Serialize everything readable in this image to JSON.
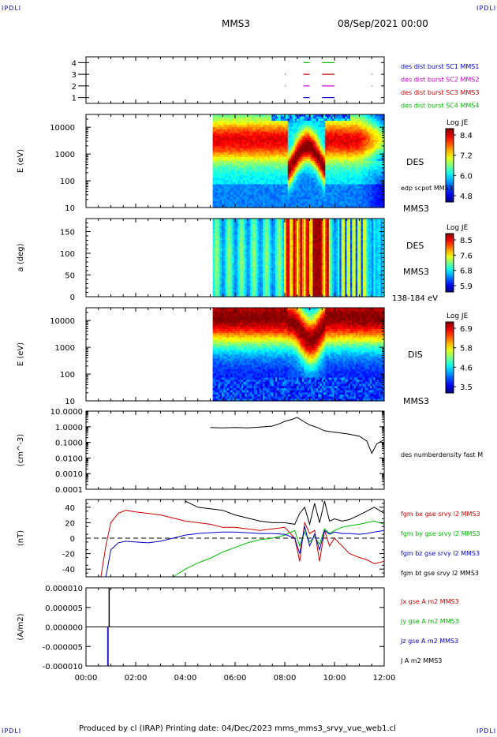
{
  "corners": {
    "top_left": "IPDLI",
    "top_right": "IPDLI",
    "bottom_left": "IPDLI",
    "bottom_right": "IPDLI"
  },
  "header": {
    "title": "MMS3",
    "date": "08/Sep/2021 00:00"
  },
  "footer": {
    "text": "Produced by cl (IRAP)   Printing date: 04/Dec/2023   mms_mms3_srvy_vue_web1.cl"
  },
  "colors": {
    "mms1": "#0000cc",
    "mms2": "#cc00cc",
    "mms3": "#cc0000",
    "mms4": "#00bb00",
    "black": "#000000"
  },
  "chart_data": [
    {
      "type": "scatter",
      "panel": "burst",
      "yticks": [
        "1",
        "2",
        "3",
        "4"
      ],
      "ylim": [
        0.5,
        4.5
      ],
      "legend": [
        {
          "label": "des dist burst SC1 MMS1",
          "color": "#0000cc"
        },
        {
          "label": "des dist burst SC2 MMS2",
          "color": "#cc00cc"
        },
        {
          "label": "des dist burst SC3 MMS3",
          "color": "#cc0000"
        },
        {
          "label": "des dist burst SC4 MMS4",
          "color": "#00bb00"
        }
      ],
      "series": [
        {
          "sc": 1,
          "segments": [
            [
              8.75,
              9.0
            ],
            [
              9.5,
              10.0
            ]
          ]
        },
        {
          "sc": 2,
          "segments": [
            [
              8.0,
              8.02
            ],
            [
              8.75,
              9.0
            ],
            [
              9.5,
              10.0
            ],
            [
              11.5,
              11.52
            ]
          ]
        },
        {
          "sc": 3,
          "segments": [
            [
              8.0,
              8.02
            ],
            [
              8.75,
              9.0
            ],
            [
              9.5,
              10.0
            ],
            [
              11.5,
              11.52
            ]
          ]
        },
        {
          "sc": 4,
          "segments": [
            [
              8.75,
              9.0
            ],
            [
              9.5,
              10.0
            ]
          ]
        }
      ]
    },
    {
      "type": "heatmap",
      "panel": "des_energy",
      "ylabel": "E (eV)",
      "yscale": "log",
      "yticks": [
        "10",
        "100",
        "1000",
        "10000"
      ],
      "ylim": [
        10,
        30000
      ],
      "colorbar": {
        "title": "Log JE",
        "ticks": [
          "8.4",
          "7.2",
          "6.0",
          "4.8"
        ],
        "range": [
          4.8,
          8.4
        ]
      },
      "labels": [
        "DES",
        "edp scpot MMS3",
        "MMS3"
      ]
    },
    {
      "type": "heatmap",
      "panel": "des_pitch",
      "ylabel": "a (deg)",
      "yticks": [
        "0",
        "50",
        "100",
        "150"
      ],
      "ylim": [
        0,
        180
      ],
      "colorbar": {
        "title": "Log JE",
        "ticks": [
          "8.5",
          "7.6",
          "6.8",
          "5.9"
        ],
        "range": [
          5.9,
          8.5
        ]
      },
      "labels": [
        "DES",
        "MMS3",
        "138-184 eV"
      ]
    },
    {
      "type": "heatmap",
      "panel": "dis_energy",
      "ylabel": "E (eV)",
      "yscale": "log",
      "yticks": [
        "10",
        "100",
        "1000",
        "10000"
      ],
      "ylim": [
        10,
        30000
      ],
      "colorbar": {
        "title": "Log JE",
        "ticks": [
          "6.9",
          "5.8",
          "4.6",
          "3.5"
        ],
        "range": [
          3.5,
          6.9
        ]
      },
      "labels": [
        "DIS",
        "MMS3"
      ]
    },
    {
      "type": "line",
      "panel": "density",
      "ylabel": "(cm^-3)",
      "yscale": "log",
      "yticks": [
        "10.0000",
        "1.0000",
        "0.1000",
        "0.0100",
        "0.0010",
        "0.0001"
      ],
      "ylim": [
        0.0001,
        10
      ],
      "legend": [
        {
          "label": "des numberdensity fast M",
          "color": "#000000"
        }
      ],
      "x": [
        5.0,
        5.5,
        6.0,
        6.5,
        7.0,
        7.5,
        7.8,
        8.0,
        8.3,
        8.5,
        8.75,
        9.0,
        9.3,
        9.6,
        10.0,
        10.5,
        11.0,
        11.3,
        11.5,
        11.7,
        12.0
      ],
      "values": [
        0.9,
        0.85,
        0.9,
        0.85,
        0.95,
        1.1,
        1.6,
        2.2,
        3.0,
        4.0,
        2.2,
        1.3,
        0.9,
        0.55,
        0.45,
        0.35,
        0.25,
        0.12,
        0.02,
        0.08,
        0.15
      ]
    },
    {
      "type": "line",
      "panel": "fgm",
      "ylabel": "(nT)",
      "yticks": [
        "40",
        "20",
        "0",
        "-20",
        "-40"
      ],
      "ylim": [
        -50,
        50
      ],
      "legend": [
        {
          "label": "fgm bx gse srvy l2 MMS3",
          "color": "#cc0000"
        },
        {
          "label": "fgm by gse srvy l2 MMS3",
          "color": "#00bb00"
        },
        {
          "label": "fgm bz gse srvy l2 MMS3",
          "color": "#0000cc"
        },
        {
          "label": "fgm bt gse srvy l2 MMS3",
          "color": "#000000"
        }
      ],
      "x": [
        0.6,
        0.8,
        1.0,
        1.3,
        1.6,
        2.0,
        2.5,
        3.0,
        3.5,
        4.0,
        4.5,
        5.0,
        5.5,
        6.0,
        6.5,
        7.0,
        7.5,
        8.0,
        8.4,
        8.6,
        8.8,
        9.0,
        9.2,
        9.4,
        9.6,
        9.8,
        10.0,
        10.3,
        10.6,
        11.0,
        11.3,
        11.6,
        12.0
      ],
      "series": [
        {
          "name": "bx",
          "values": [
            -50,
            -10,
            20,
            32,
            36,
            34,
            32,
            30,
            26,
            22,
            20,
            18,
            14,
            14,
            12,
            10,
            12,
            14,
            0,
            -30,
            20,
            6,
            10,
            -30,
            10,
            -10,
            0,
            -10,
            -20,
            -25,
            -28,
            -33,
            -30
          ]
        },
        {
          "name": "by",
          "values": [
            null,
            null,
            null,
            null,
            null,
            null,
            null,
            null,
            -50,
            -40,
            -32,
            -26,
            -18,
            -12,
            -6,
            -2,
            0,
            4,
            10,
            -10,
            8,
            -5,
            2,
            -8,
            12,
            6,
            10,
            14,
            16,
            18,
            20,
            22,
            18
          ]
        },
        {
          "name": "bz",
          "values": [
            null,
            -50,
            -15,
            -6,
            -4,
            -5,
            -6,
            -4,
            0,
            4,
            6,
            7,
            8,
            8,
            7,
            6,
            6,
            5,
            0,
            -20,
            15,
            -10,
            5,
            -15,
            10,
            5,
            8,
            6,
            6,
            5,
            6,
            8,
            10
          ]
        },
        {
          "name": "bt",
          "values": [
            null,
            null,
            null,
            null,
            null,
            null,
            null,
            null,
            null,
            48,
            40,
            38,
            36,
            30,
            26,
            22,
            20,
            20,
            18,
            32,
            40,
            18,
            45,
            20,
            48,
            22,
            25,
            22,
            24,
            30,
            35,
            40,
            32
          ]
        }
      ]
    },
    {
      "type": "line",
      "panel": "current",
      "ylabel": "(A/m2)",
      "yticks": [
        "0.000010",
        "0.000005",
        "0.000000",
        "-0.000005",
        "-0.000010"
      ],
      "ylim": [
        -1e-05,
        1e-05
      ],
      "legend": [
        {
          "label": "Jx gse A m2 MMS3",
          "color": "#cc0000"
        },
        {
          "label": "Jy gse A m2 MMS3",
          "color": "#00bb00"
        },
        {
          "label": "Jz gse A m2 MMS3",
          "color": "#0000cc"
        },
        {
          "label": "J A m2 MMS3",
          "color": "#000000"
        }
      ],
      "spike": {
        "x": 0.9,
        "J": 1e-05,
        "Jx": -1e-05,
        "Jz": -1e-05
      }
    }
  ],
  "xaxis": {
    "ticks": [
      "00:00",
      "02:00",
      "04:00",
      "06:00",
      "08:00",
      "10:00",
      "12:00"
    ],
    "range": [
      0,
      12
    ]
  }
}
